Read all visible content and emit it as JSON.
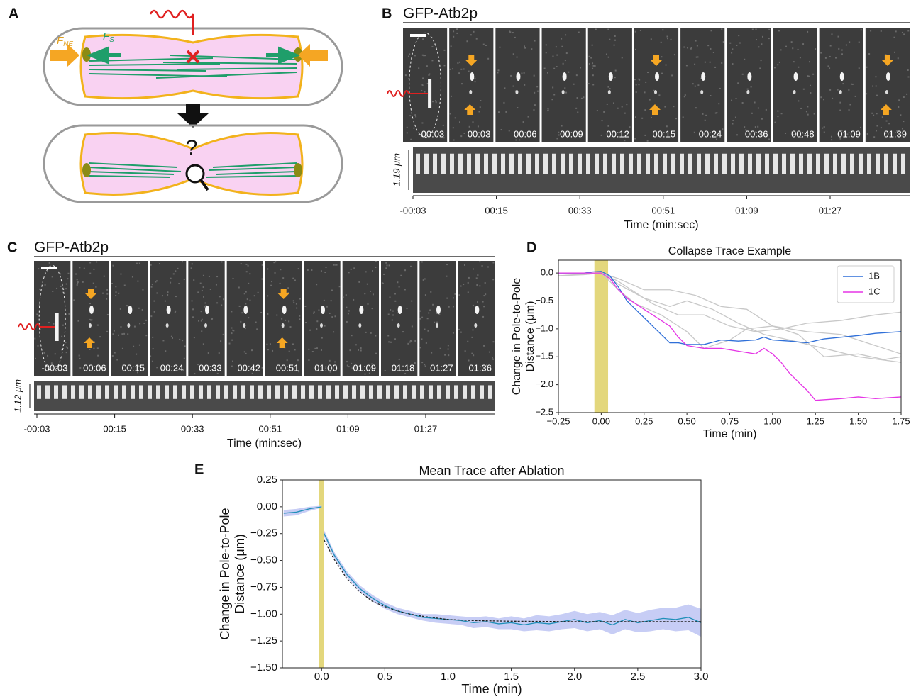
{
  "panel_labels": [
    "A",
    "B",
    "C",
    "D",
    "E"
  ],
  "panel_a": {
    "force_labels": [
      {
        "symbol": "F",
        "subscript": "NE"
      },
      {
        "symbol": "F",
        "subscript": "S"
      }
    ],
    "question": "?"
  },
  "panel_b": {
    "title": "GFP-Atb2p",
    "frame_times": [
      "-00:03",
      "00:03",
      "00:06",
      "00:09",
      "00:12",
      "00:15",
      "00:24",
      "00:36",
      "00:48",
      "01:09",
      "01:39"
    ],
    "kymo_scale": "1.19 μm",
    "kymo_ticks": [
      "-00:03",
      "00:15",
      "00:33",
      "00:51",
      "01:09",
      "01:27"
    ],
    "xlabel": "Time (min:sec)"
  },
  "panel_c": {
    "title": "GFP-Atb2p",
    "frame_times": [
      "-00:03",
      "00:06",
      "00:15",
      "00:24",
      "00:33",
      "00:42",
      "00:51",
      "01:00",
      "01:09",
      "01:18",
      "01:27",
      "01:36"
    ],
    "kymo_scale": "1.12 μm",
    "kymo_ticks": [
      "-00:03",
      "00:15",
      "00:33",
      "00:51",
      "01:09",
      "01:27"
    ],
    "xlabel": "Time (min:sec)"
  },
  "chart_data": [
    {
      "type": "line",
      "title": "Collapse Trace Example",
      "xlabel": "Time (min)",
      "ylabel": [
        "Change in Pole-to-Pole",
        "Distance  (μm)"
      ],
      "xlim": [
        -0.25,
        1.75
      ],
      "ylim": [
        -2.5,
        0.23
      ],
      "xticks": [
        {
          "value": -0.25,
          "label": "−0.25"
        },
        {
          "value": 0,
          "label": "0.00"
        },
        0.25,
        {
          "value": 0.5,
          "label": "0.50"
        },
        0.75,
        {
          "value": 1,
          "label": "1.00"
        },
        1.25,
        {
          "value": 1.5,
          "label": "1.50"
        },
        1.75
      ],
      "yticks": [
        {
          "value": 0,
          "label": "0.0"
        },
        {
          "value": -0.5,
          "label": "−0.5"
        },
        {
          "value": -1,
          "label": "−1.0"
        },
        {
          "value": -1.5,
          "label": "−1.5"
        },
        {
          "value": -2,
          "label": "−2.0"
        },
        {
          "value": -2.5,
          "label": "−2.5"
        }
      ],
      "ablation_span": [
        -0.04,
        0.04
      ],
      "span_color": "#e3d77c",
      "legend": "upper right",
      "series": [
        {
          "color": "#c8c8c8",
          "x": [
            -0.25,
            -0.1,
            0.0,
            0.1,
            0.2,
            0.3,
            0.45,
            0.6,
            0.75,
            0.9,
            1.05,
            1.2,
            1.4,
            1.6,
            1.75
          ],
          "values": [
            -0.05,
            -0.02,
            0.0,
            -0.15,
            -0.35,
            -0.55,
            -0.75,
            -0.75,
            -0.95,
            -1.05,
            -1.0,
            -0.9,
            -0.85,
            -0.75,
            -0.7
          ]
        },
        {
          "color": "#c8c8c8",
          "x": [
            -0.25,
            -0.1,
            0.0,
            0.1,
            0.25,
            0.4,
            0.5,
            0.65,
            0.8,
            0.95,
            1.1,
            1.3,
            1.5,
            1.75
          ],
          "values": [
            -0.05,
            -0.03,
            0.0,
            -0.2,
            -0.45,
            -0.6,
            -0.5,
            -0.65,
            -0.9,
            -1.1,
            -1.2,
            -1.35,
            -1.5,
            -1.6
          ]
        },
        {
          "color": "#c8c8c8",
          "x": [
            -0.25,
            -0.1,
            0.0,
            0.1,
            0.2,
            0.35,
            0.5,
            0.6,
            0.75,
            0.85,
            1.0,
            1.2,
            1.4,
            1.6,
            1.75
          ],
          "values": [
            0.0,
            0.0,
            0.0,
            -0.3,
            -0.55,
            -0.75,
            -1.05,
            -1.35,
            -1.2,
            -1.0,
            -0.95,
            -1.05,
            -1.1,
            -1.3,
            -1.45
          ]
        },
        {
          "color": "#c8c8c8",
          "x": [
            -0.25,
            -0.1,
            0.0,
            0.1,
            0.25,
            0.4,
            0.55,
            0.7,
            0.85,
            1.0,
            1.15,
            1.3,
            1.5,
            1.65,
            1.75
          ],
          "values": [
            0.0,
            0.0,
            0.0,
            -0.1,
            -0.3,
            -0.3,
            -0.4,
            -0.6,
            -0.65,
            -0.95,
            -1.1,
            -1.5,
            -1.45,
            -1.55,
            -1.5
          ]
        },
        {
          "name": "1B",
          "color": "#2f6fd8",
          "x": [
            -0.25,
            -0.1,
            -0.05,
            0.0,
            0.05,
            0.1,
            0.15,
            0.2,
            0.25,
            0.3,
            0.35,
            0.4,
            0.45,
            0.5,
            0.6,
            0.7,
            0.8,
            0.9,
            0.95,
            1.0,
            1.1,
            1.2,
            1.3,
            1.4,
            1.5,
            1.6,
            1.75
          ],
          "values": [
            0.0,
            0.0,
            0.02,
            0.03,
            -0.05,
            -0.25,
            -0.5,
            -0.65,
            -0.8,
            -0.95,
            -1.1,
            -1.25,
            -1.25,
            -1.28,
            -1.28,
            -1.2,
            -1.22,
            -1.2,
            -1.15,
            -1.2,
            -1.22,
            -1.25,
            -1.18,
            -1.15,
            -1.12,
            -1.08,
            -1.05
          ]
        },
        {
          "name": "1C",
          "color": "#e535e5",
          "x": [
            -0.25,
            -0.1,
            0.0,
            0.05,
            0.1,
            0.15,
            0.25,
            0.3,
            0.4,
            0.45,
            0.5,
            0.6,
            0.7,
            0.8,
            0.9,
            0.95,
            1.0,
            1.05,
            1.1,
            1.15,
            1.2,
            1.25,
            1.4,
            1.5,
            1.6,
            1.75
          ],
          "values": [
            0.0,
            0.0,
            0.0,
            -0.1,
            -0.3,
            -0.45,
            -0.65,
            -0.75,
            -0.95,
            -1.15,
            -1.3,
            -1.35,
            -1.35,
            -1.4,
            -1.45,
            -1.35,
            -1.45,
            -1.6,
            -1.8,
            -1.95,
            -2.1,
            -2.28,
            -2.25,
            -2.22,
            -2.25,
            -2.22
          ]
        }
      ]
    },
    {
      "type": "line",
      "title": "Mean Trace after Ablation",
      "xlabel": "Time (min)",
      "ylabel": [
        "Change in Pole-to-Pole",
        "Distance (μm)"
      ],
      "xlim": [
        -0.31,
        3.0
      ],
      "ylim": [
        -1.5,
        0.25
      ],
      "xticks": [
        {
          "value": 0,
          "label": "0.0"
        },
        0.5,
        {
          "value": 1,
          "label": "1.0"
        },
        1.5,
        {
          "value": 2,
          "label": "2.0"
        },
        2.5,
        {
          "value": 3,
          "label": "3.0"
        }
      ],
      "yticks": [
        0.25,
        {
          "value": 0,
          "label": "0.00"
        },
        {
          "value": -0.25,
          "label": "−0.25"
        },
        {
          "value": -0.5,
          "label": "−0.50"
        },
        {
          "value": -0.75,
          "label": "−0.75"
        },
        {
          "value": -1,
          "label": "−1.00"
        },
        {
          "value": -1.25,
          "label": "−1.25"
        },
        {
          "value": -1.5,
          "label": "−1.50"
        }
      ],
      "ablation_span": [
        -0.02,
        0.02
      ],
      "span_color": "#e3d77c",
      "series": [
        {
          "color": "#1f8fb8",
          "band_color": "#c7cdf5",
          "x": [
            -0.3,
            -0.2,
            -0.1,
            0.0,
            0.01,
            0.02,
            0.1,
            0.2,
            0.3,
            0.4,
            0.5,
            0.6,
            0.7,
            0.8,
            0.9,
            1.0,
            1.1,
            1.2,
            1.3,
            1.4,
            1.5,
            1.6,
            1.7,
            1.8,
            1.9,
            2.0,
            2.1,
            2.2,
            2.3,
            2.4,
            2.5,
            2.6,
            2.7,
            2.8,
            2.9,
            3.0
          ],
          "values": [
            -0.06,
            -0.05,
            -0.02,
            0.0,
            null,
            -0.25,
            -0.45,
            -0.63,
            -0.76,
            -0.85,
            -0.92,
            -0.97,
            -1.0,
            -1.03,
            -1.04,
            -1.05,
            -1.06,
            -1.08,
            -1.07,
            -1.09,
            -1.08,
            -1.1,
            -1.08,
            -1.09,
            -1.07,
            -1.05,
            -1.08,
            -1.06,
            -1.1,
            -1.05,
            -1.08,
            -1.06,
            -1.04,
            -1.05,
            -1.03,
            -1.08
          ],
          "errors": [
            0.03,
            0.03,
            0.02,
            0.01,
            null,
            0.03,
            0.03,
            0.03,
            0.03,
            0.03,
            0.03,
            0.03,
            0.03,
            0.03,
            0.04,
            0.04,
            0.04,
            0.05,
            0.05,
            0.05,
            0.06,
            0.06,
            0.07,
            0.07,
            0.07,
            0.08,
            0.08,
            0.08,
            0.09,
            0.09,
            0.09,
            0.1,
            0.1,
            0.11,
            0.12,
            0.13
          ]
        },
        {
          "color": "#222222",
          "dash": true,
          "x": [
            0.02,
            0.1,
            0.2,
            0.3,
            0.4,
            0.5,
            0.6,
            0.7,
            0.8,
            1.0,
            1.2,
            1.5,
            2.0,
            2.5,
            3.0
          ],
          "values": [
            -0.31,
            -0.49,
            -0.67,
            -0.79,
            -0.88,
            -0.93,
            -0.97,
            -1.0,
            -1.02,
            -1.05,
            -1.06,
            -1.066,
            -1.07,
            -1.07,
            -1.07
          ]
        }
      ]
    }
  ]
}
